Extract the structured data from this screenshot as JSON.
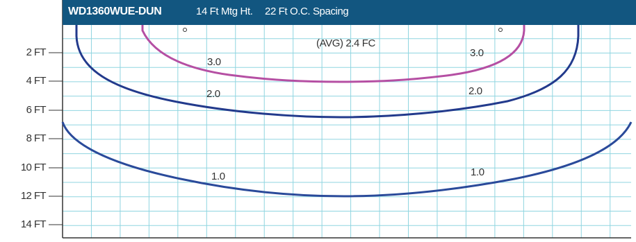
{
  "header": {
    "model": "WD1360WUE-DUN",
    "mounting_height": "14 Ft Mtg Ht.",
    "spacing": "22 Ft O.C. Spacing"
  },
  "average_label": "(AVG) 2.4 FC",
  "y_axis_labels": [
    "2 FT",
    "4 FT",
    "6 FT",
    "8 FT",
    "10 FT",
    "12 FT",
    "14 FT"
  ],
  "contours": [
    {
      "label": "3.0",
      "color": "#b54fa3"
    },
    {
      "label": "2.0",
      "color": "#223a8c"
    },
    {
      "label": "1.0",
      "color": "#2a4a9a"
    }
  ],
  "colors": {
    "header_bg": "#125680",
    "grid": "#8fd5e0",
    "frame": "#333333"
  }
}
